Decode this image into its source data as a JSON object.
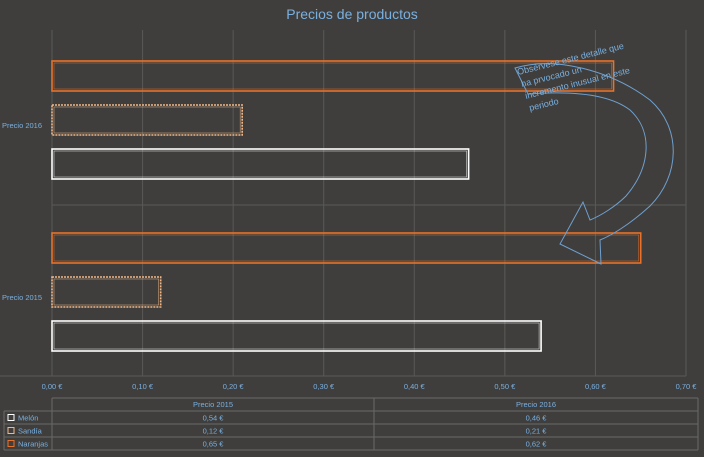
{
  "chart_data": {
    "type": "bar",
    "orientation": "horizontal",
    "title": "Precios de productos",
    "categories": [
      "Precio 2015",
      "Precio 2016"
    ],
    "series": [
      {
        "name": "Melón",
        "values": [
          0.54,
          0.46
        ],
        "labels": [
          "0,54 €",
          "0,46 €"
        ],
        "color": "#ffffff"
      },
      {
        "name": "Sandía",
        "values": [
          0.12,
          0.21
        ],
        "labels": [
          "0,12 €",
          "0,21 €"
        ],
        "color": "#f0b88a"
      },
      {
        "name": "Naranjas",
        "values": [
          0.65,
          0.62
        ],
        "labels": [
          "0,65 €",
          "0,62 €"
        ],
        "color": "#e8722a"
      }
    ],
    "xlim": [
      0,
      0.7
    ],
    "xticks": [
      0,
      0.1,
      0.2,
      0.3,
      0.4,
      0.5,
      0.6,
      0.7
    ],
    "xtick_labels": [
      "0,00 €",
      "0,10 €",
      "0,20 €",
      "0,30 €",
      "0,40 €",
      "0,50 €",
      "0,60 €",
      "0,70 €"
    ],
    "grid": true,
    "legend": "data-table",
    "annotation": [
      "Obsérvese este detalle que",
      "ha prvocado un",
      "incremento inusual en este",
      "periodo"
    ]
  },
  "colors": {
    "background": "#3f3e3c",
    "text": "#7ab0e0",
    "grid": "#5a5957",
    "arrow": "#6fa0d0"
  }
}
